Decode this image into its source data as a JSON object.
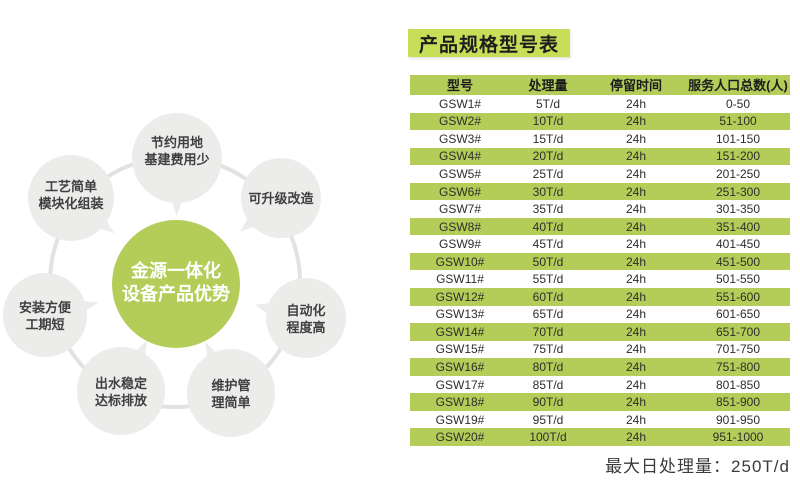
{
  "title_badge": "产品规格型号表",
  "diagram": {
    "center": {
      "lines": [
        "金源一体化",
        "设备产品优势"
      ]
    },
    "petals": [
      {
        "id": "land-saving",
        "lines": [
          "节约用地",
          "基建费用少"
        ]
      },
      {
        "id": "upgradeable",
        "lines": [
          "可升级改造"
        ]
      },
      {
        "id": "automation",
        "lines": [
          "自动化",
          "程度高"
        ]
      },
      {
        "id": "easy-maintenance",
        "lines": [
          "维护管",
          "理简单"
        ]
      },
      {
        "id": "stable-effluent",
        "lines": [
          "出水稳定",
          "达标排放"
        ]
      },
      {
        "id": "easy-install",
        "lines": [
          "安装方便",
          "工期短"
        ]
      },
      {
        "id": "simple-process",
        "lines": [
          "工艺简单",
          "模块化组装"
        ]
      }
    ]
  },
  "table": {
    "headers": [
      "型号",
      "处理量",
      "停留时间",
      "服务人口总数(人)"
    ],
    "rows": [
      [
        "GSW1#",
        "5T/d",
        "24h",
        "0-50"
      ],
      [
        "GSW2#",
        "10T/d",
        "24h",
        "51-100"
      ],
      [
        "GSW3#",
        "15T/d",
        "24h",
        "101-150"
      ],
      [
        "GSW4#",
        "20T/d",
        "24h",
        "151-200"
      ],
      [
        "GSW5#",
        "25T/d",
        "24h",
        "201-250"
      ],
      [
        "GSW6#",
        "30T/d",
        "24h",
        "251-300"
      ],
      [
        "GSW7#",
        "35T/d",
        "24h",
        "301-350"
      ],
      [
        "GSW8#",
        "40T/d",
        "24h",
        "351-400"
      ],
      [
        "GSW9#",
        "45T/d",
        "24h",
        "401-450"
      ],
      [
        "GSW10#",
        "50T/d",
        "24h",
        "451-500"
      ],
      [
        "GSW11#",
        "55T/d",
        "24h",
        "501-550"
      ],
      [
        "GSW12#",
        "60T/d",
        "24h",
        "551-600"
      ],
      [
        "GSW13#",
        "65T/d",
        "24h",
        "601-650"
      ],
      [
        "GSW14#",
        "70T/d",
        "24h",
        "651-700"
      ],
      [
        "GSW15#",
        "75T/d",
        "24h",
        "701-750"
      ],
      [
        "GSW16#",
        "80T/d",
        "24h",
        "751-800"
      ],
      [
        "GSW17#",
        "85T/d",
        "24h",
        "801-850"
      ],
      [
        "GSW18#",
        "90T/d",
        "24h",
        "851-900"
      ],
      [
        "GSW19#",
        "95T/d",
        "24h",
        "901-950"
      ],
      [
        "GSW20#",
        "100T/d",
        "24h",
        "951-1000"
      ]
    ]
  },
  "footer_note": "最大日处理量：250T/d",
  "colors": {
    "green": "#b4cd58",
    "badge_green": "#c7de58",
    "petal_gray": "#ececeb",
    "ring_gray": "#e3e2e1"
  }
}
